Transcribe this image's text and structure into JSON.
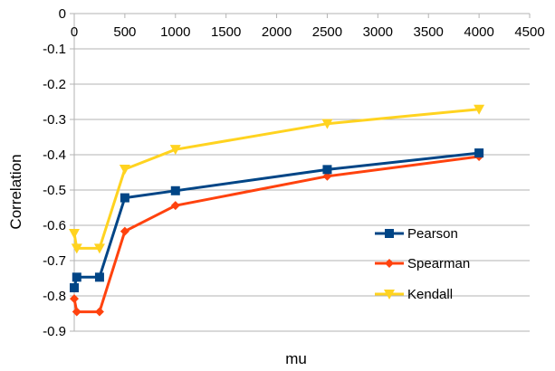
{
  "chart_data": {
    "type": "line",
    "title": "",
    "xlabel": "mu",
    "ylabel": "Correlation",
    "xlim": [
      0,
      4500
    ],
    "ylim": [
      -0.9,
      0
    ],
    "x_ticks": [
      "0",
      "500",
      "1000",
      "1500",
      "2000",
      "2500",
      "3000",
      "3500",
      "4000",
      "4500"
    ],
    "y_ticks": [
      "0",
      "-0.1",
      "-0.2",
      "-0.3",
      "-0.4",
      "-0.5",
      "-0.6",
      "-0.7",
      "-0.8",
      "-0.9"
    ],
    "x_axis_position": "top",
    "grid": "horizontal",
    "legend_position": "right",
    "series": [
      {
        "name": "Pearson",
        "color": "#004586",
        "marker": "square",
        "x": [
          0,
          25,
          250,
          500,
          1000,
          2500,
          4000
        ],
        "values": [
          -0.777,
          -0.747,
          -0.747,
          -0.522,
          -0.502,
          -0.442,
          -0.395
        ]
      },
      {
        "name": "Spearman",
        "color": "#ff420e",
        "marker": "diamond",
        "x": [
          0,
          25,
          250,
          500,
          1000,
          2500,
          4000
        ],
        "values": [
          -0.808,
          -0.845,
          -0.845,
          -0.617,
          -0.544,
          -0.461,
          -0.405
        ]
      },
      {
        "name": "Kendall",
        "color": "#ffd320",
        "marker": "triangle-down",
        "x": [
          0,
          25,
          250,
          500,
          1000,
          2500,
          4000
        ],
        "values": [
          -0.623,
          -0.665,
          -0.665,
          -0.441,
          -0.385,
          -0.312,
          -0.271
        ]
      }
    ]
  }
}
